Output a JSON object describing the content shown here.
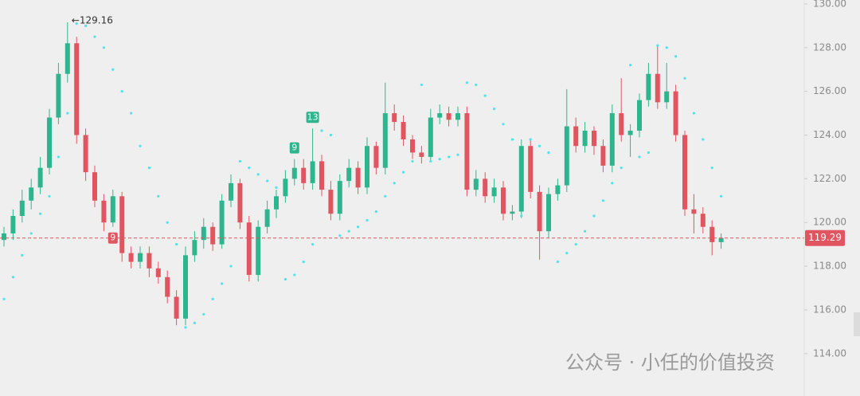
{
  "chart_data": {
    "type": "candlestick",
    "open": [
      119.2,
      119.5,
      120.3,
      121.0,
      121.6,
      122.5,
      124.8,
      126.8,
      128.2,
      124.0,
      122.3,
      121.0,
      120.0,
      121.2,
      118.6,
      118.2,
      118.6,
      117.9,
      117.5,
      116.6,
      115.6,
      118.5,
      119.2,
      119.8,
      119.0,
      121.0,
      121.8,
      120.0,
      117.6,
      119.8,
      120.6,
      121.2,
      122.0,
      122.5,
      121.8,
      122.8,
      121.5,
      120.4,
      121.9,
      122.5,
      121.6,
      123.5,
      122.5,
      125.0,
      124.6,
      123.8,
      123.2,
      123.0,
      124.8,
      125.0,
      124.7,
      125.0,
      121.5,
      122.0,
      121.2,
      121.6,
      120.4,
      120.5,
      123.5,
      121.4,
      119.6,
      121.3,
      121.7,
      124.4,
      123.5,
      124.2,
      123.5,
      122.6,
      125.0,
      124.0,
      124.2,
      125.6,
      126.8,
      125.5,
      126.0,
      124.0,
      120.6,
      120.4,
      119.8,
      119.1
    ],
    "high": [
      119.8,
      120.6,
      121.5,
      122.0,
      123.0,
      125.2,
      127.3,
      129.16,
      128.5,
      124.3,
      122.6,
      121.3,
      121.5,
      121.4,
      118.9,
      118.9,
      118.9,
      118.2,
      117.8,
      116.9,
      118.9,
      119.6,
      120.2,
      120.0,
      121.3,
      122.2,
      122.0,
      120.3,
      120.1,
      121.0,
      121.5,
      122.4,
      122.9,
      122.9,
      124.3,
      123.1,
      121.9,
      122.2,
      122.9,
      122.8,
      123.9,
      123.7,
      126.4,
      125.4,
      124.9,
      124.0,
      123.5,
      125.2,
      125.4,
      125.3,
      125.3,
      125.3,
      122.4,
      122.3,
      122.0,
      121.9,
      120.8,
      123.8,
      123.8,
      121.7,
      121.6,
      122.0,
      126.1,
      124.8,
      124.6,
      124.4,
      123.8,
      125.4,
      126.6,
      124.5,
      125.9,
      127.3,
      128.1,
      127.3,
      126.3,
      124.2,
      121.3,
      120.7,
      120.1,
      119.5
    ],
    "low": [
      118.9,
      119.2,
      120.0,
      120.6,
      121.3,
      122.2,
      124.5,
      126.4,
      123.6,
      121.9,
      120.7,
      119.6,
      119.8,
      118.2,
      117.9,
      117.9,
      117.5,
      117.2,
      116.3,
      115.3,
      115.3,
      118.2,
      118.8,
      118.7,
      118.8,
      120.7,
      119.7,
      117.3,
      117.3,
      119.5,
      120.2,
      120.9,
      121.7,
      121.5,
      121.5,
      121.2,
      120.1,
      120.1,
      121.6,
      121.3,
      121.3,
      122.2,
      122.2,
      124.2,
      123.5,
      122.9,
      122.7,
      122.8,
      124.5,
      124.4,
      124.4,
      121.2,
      121.2,
      120.9,
      120.9,
      120.1,
      120.1,
      120.2,
      121.1,
      118.3,
      119.3,
      121.0,
      121.4,
      123.2,
      123.2,
      123.1,
      122.3,
      122.3,
      123.7,
      123.0,
      123.9,
      125.3,
      125.2,
      125.2,
      123.7,
      120.3,
      119.5,
      119.5,
      118.5,
      118.8
    ],
    "close": [
      119.5,
      120.3,
      121.0,
      121.6,
      122.5,
      124.8,
      126.8,
      128.2,
      124.0,
      122.3,
      121.0,
      120.0,
      121.2,
      118.6,
      118.2,
      118.6,
      117.9,
      117.5,
      116.6,
      115.6,
      118.5,
      119.2,
      119.8,
      119.0,
      121.0,
      121.8,
      120.0,
      117.6,
      119.8,
      120.6,
      121.2,
      122.0,
      122.5,
      121.8,
      122.8,
      121.5,
      120.4,
      121.9,
      122.5,
      121.6,
      123.5,
      122.5,
      125.0,
      124.6,
      123.8,
      123.2,
      123.0,
      124.8,
      125.0,
      124.7,
      125.0,
      121.5,
      122.0,
      121.2,
      121.6,
      120.4,
      120.5,
      123.5,
      121.4,
      119.6,
      121.3,
      121.7,
      124.4,
      123.5,
      124.2,
      123.5,
      122.6,
      125.0,
      124.0,
      124.2,
      125.6,
      126.8,
      125.5,
      126.0,
      124.0,
      120.6,
      120.4,
      119.8,
      119.1,
      119.29
    ],
    "sar": [
      116.5,
      117.5,
      118.5,
      119.5,
      120.4,
      121.2,
      123.0,
      125.0,
      129.1,
      129.0,
      128.5,
      128.0,
      127.0,
      126.0,
      125.0,
      123.5,
      122.5,
      121.2,
      120.0,
      119.0,
      115.2,
      115.4,
      115.8,
      116.5,
      117.2,
      118.0,
      122.8,
      122.5,
      122.2,
      121.9,
      121.6,
      117.4,
      117.6,
      118.2,
      119.0,
      124.2,
      124.0,
      119.4,
      119.6,
      119.8,
      120.1,
      120.5,
      121.2,
      121.8,
      122.3,
      122.8,
      126.3,
      122.8,
      122.9,
      123.0,
      123.1,
      126.4,
      126.3,
      125.8,
      125.2,
      124.5,
      123.8,
      120.3,
      123.8,
      123.5,
      123.2,
      118.2,
      118.6,
      119.0,
      119.6,
      120.3,
      121.0,
      121.8,
      122.5,
      127.2,
      123.0,
      123.2,
      128.1,
      128.0,
      127.6,
      126.6,
      125.0,
      123.8,
      122.5,
      121.2
    ],
    "up_color": "#2fb58d",
    "down_color": "#e05560",
    "sar_color": "#4fe3ea",
    "ylim": [
      112.06,
      130.18
    ],
    "yticks": [
      {
        "value": 114,
        "label": "114.00"
      },
      {
        "value": 116,
        "label": "116.00"
      },
      {
        "value": 118,
        "label": "118.00"
      },
      {
        "value": 120,
        "label": "120.00"
      },
      {
        "value": 122,
        "label": "122.00"
      },
      {
        "value": 124,
        "label": "124.00"
      },
      {
        "value": 126,
        "label": "126.00"
      },
      {
        "value": 128,
        "label": "128.00"
      },
      {
        "value": 130,
        "label": "130.00"
      }
    ],
    "last_price": 119.29,
    "annotations": [
      {
        "text": "←129.16",
        "value": 129.16,
        "index": 7
      }
    ],
    "markers": [
      {
        "text": "9",
        "index": 12,
        "side": "below",
        "color": "#e05560"
      },
      {
        "text": "9",
        "index": 32,
        "side": "above",
        "color": "#2fb58d"
      },
      {
        "text": "13",
        "index": 34,
        "side": "above",
        "color": "#2fb58d"
      }
    ],
    "watermark": "公众号 · 小任的价值投资"
  }
}
